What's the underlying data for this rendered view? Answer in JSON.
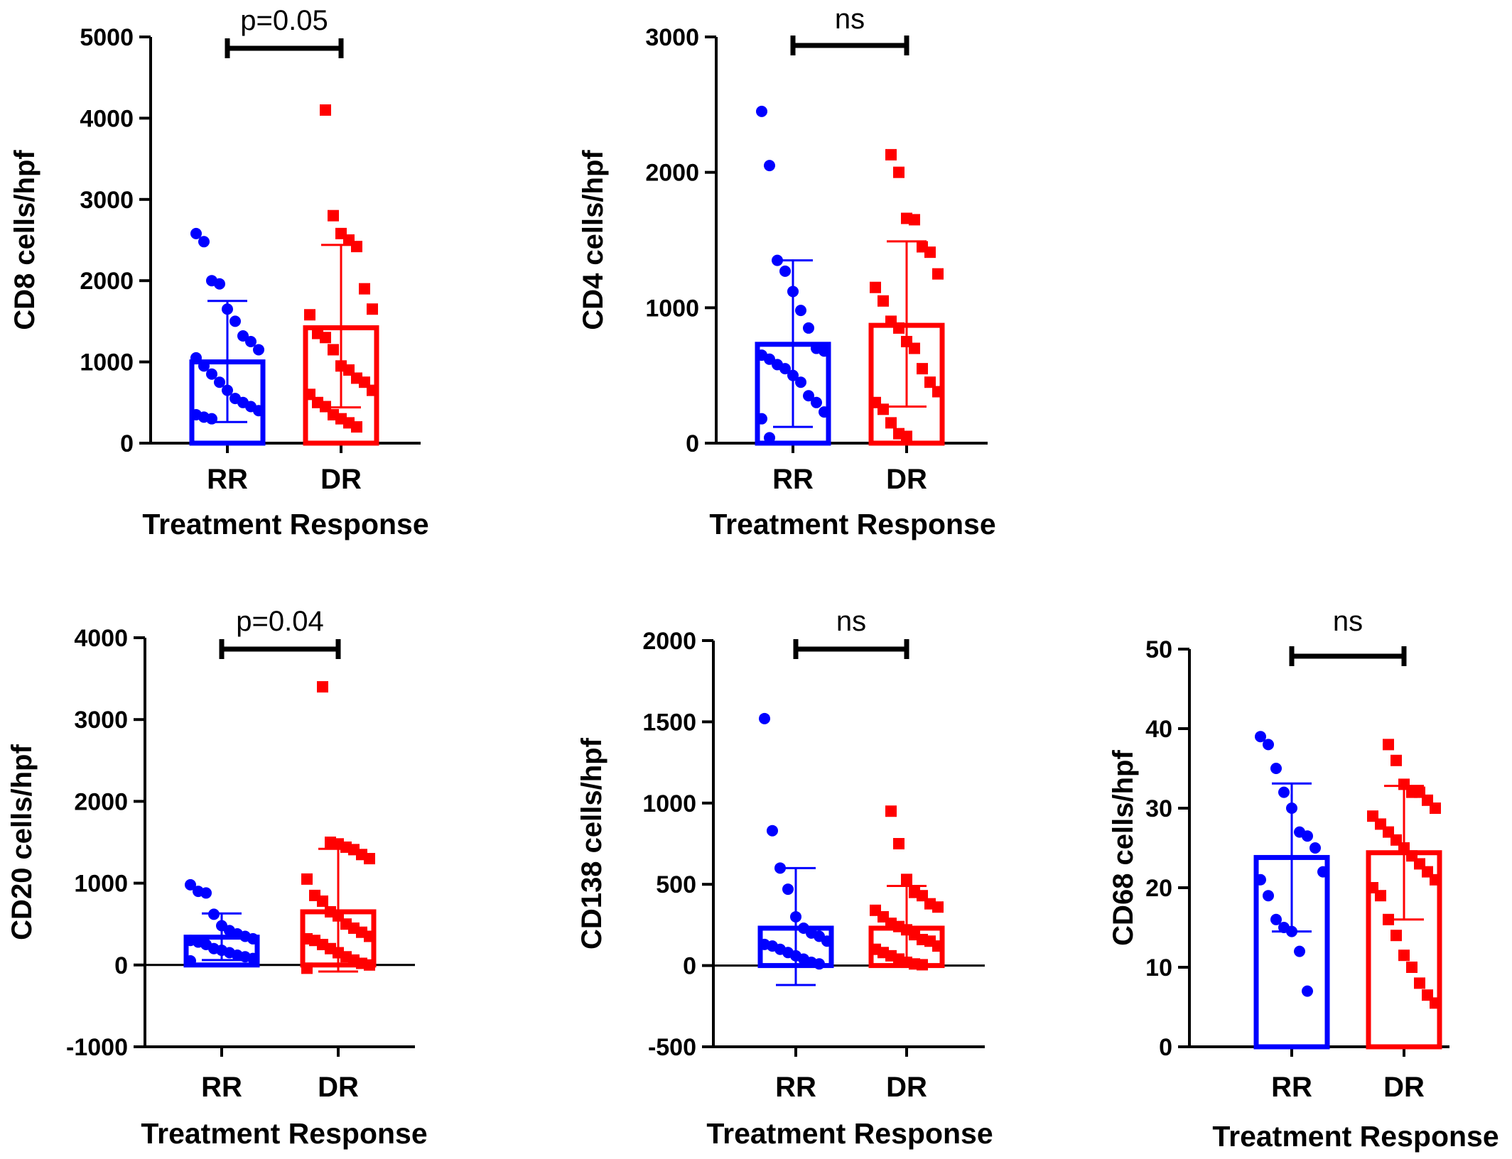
{
  "colors": {
    "RR": "#0000ff",
    "DR": "#ff0000",
    "axis": "#000000"
  },
  "chart_data": [
    {
      "type": "bar",
      "categories": [
        "RR",
        "DR"
      ],
      "ylabel": "CD8 cells/hpf",
      "xlabel": "Treatment Response",
      "ylim": [
        0,
        5000
      ],
      "yticks": [
        0,
        1000,
        2000,
        3000,
        4000,
        5000
      ],
      "tick_labels": [
        "0",
        "1000",
        "2000",
        "3000",
        "4000",
        "5000"
      ],
      "significance": "p=0.05",
      "zero_line": false,
      "series": [
        {
          "name": "RR",
          "mean": 1000,
          "sd_low": 260,
          "sd_high": 1750,
          "points": [
            2580,
            2480,
            2000,
            1960,
            1650,
            1500,
            1320,
            1250,
            1150,
            1050,
            950,
            850,
            750,
            650,
            550,
            500,
            450,
            400,
            350,
            320,
            300
          ]
        },
        {
          "name": "DR",
          "mean": 1420,
          "sd_low": 440,
          "sd_high": 2440,
          "points": [
            4100,
            2800,
            2580,
            2500,
            2420,
            1900,
            1650,
            1580,
            1350,
            1300,
            1150,
            950,
            900,
            800,
            750,
            650,
            600,
            500,
            450,
            350,
            300,
            250,
            200
          ]
        }
      ]
    },
    {
      "type": "bar",
      "categories": [
        "RR",
        "DR"
      ],
      "ylabel": "CD4 cells/hpf",
      "xlabel": "Treatment Response",
      "ylim": [
        0,
        3000
      ],
      "yticks": [
        0,
        1000,
        2000,
        3000
      ],
      "tick_labels": [
        "0",
        "1000",
        "2000",
        "3000"
      ],
      "significance": "ns",
      "zero_line": false,
      "series": [
        {
          "name": "RR",
          "mean": 730,
          "sd_low": 120,
          "sd_high": 1350,
          "points": [
            2450,
            2050,
            1350,
            1270,
            1120,
            980,
            850,
            700,
            680,
            650,
            620,
            580,
            550,
            500,
            450,
            350,
            300,
            230,
            180,
            40
          ]
        },
        {
          "name": "DR",
          "mean": 870,
          "sd_low": 270,
          "sd_high": 1490,
          "points": [
            2130,
            2000,
            1660,
            1650,
            1450,
            1410,
            1250,
            1150,
            1050,
            900,
            850,
            750,
            700,
            550,
            450,
            380,
            300,
            250,
            150,
            70,
            50
          ]
        }
      ]
    },
    {
      "type": "bar",
      "categories": [
        "RR",
        "DR"
      ],
      "ylabel": "CD20 cells/hpf",
      "xlabel": "Treatment Response",
      "ylim": [
        -1000,
        4000
      ],
      "yticks": [
        -1000,
        0,
        1000,
        2000,
        3000,
        4000
      ],
      "tick_labels": [
        "-1000",
        "0",
        "1000",
        "2000",
        "3000",
        "4000"
      ],
      "significance": "p=0.04",
      "zero_line": true,
      "series": [
        {
          "name": "RR",
          "mean": 340,
          "sd_low": 60,
          "sd_high": 630,
          "points": [
            980,
            900,
            880,
            620,
            480,
            420,
            380,
            350,
            320,
            300,
            280,
            250,
            200,
            180,
            150,
            120,
            100,
            80,
            50
          ]
        },
        {
          "name": "DR",
          "mean": 650,
          "sd_low": -80,
          "sd_high": 1420,
          "points": [
            3400,
            1500,
            1480,
            1440,
            1410,
            1350,
            1300,
            1050,
            850,
            780,
            650,
            600,
            500,
            450,
            400,
            350,
            320,
            300,
            250,
            200,
            150,
            100,
            60,
            20,
            0,
            -40
          ]
        }
      ]
    },
    {
      "type": "bar",
      "categories": [
        "RR",
        "DR"
      ],
      "ylabel": "CD138 cells/hpf",
      "xlabel": "Treatment Response",
      "ylim": [
        -500,
        2000
      ],
      "yticks": [
        -500,
        0,
        500,
        1000,
        1500,
        2000
      ],
      "tick_labels": [
        "-500",
        "0",
        "500",
        "1000",
        "1500",
        "2000"
      ],
      "significance": "ns",
      "zero_line": true,
      "series": [
        {
          "name": "RR",
          "mean": 230,
          "sd_low": -120,
          "sd_high": 600,
          "points": [
            1520,
            830,
            600,
            470,
            300,
            230,
            200,
            180,
            150,
            130,
            120,
            100,
            80,
            60,
            40,
            20,
            10
          ]
        },
        {
          "name": "DR",
          "mean": 230,
          "sd_low": 0,
          "sd_high": 490,
          "points": [
            950,
            750,
            530,
            450,
            430,
            380,
            360,
            340,
            300,
            260,
            240,
            220,
            190,
            160,
            150,
            120,
            100,
            80,
            60,
            40,
            20,
            10,
            5
          ]
        }
      ]
    },
    {
      "type": "bar",
      "categories": [
        "RR",
        "DR"
      ],
      "ylabel": "CD68 cells/hpf",
      "xlabel": "Treatment Response",
      "ylim": [
        0,
        50
      ],
      "yticks": [
        0,
        10,
        20,
        30,
        40,
        50
      ],
      "tick_labels": [
        "0",
        "10",
        "20",
        "30",
        "40",
        "50"
      ],
      "significance": "ns",
      "zero_line": false,
      "series": [
        {
          "name": "RR",
          "mean": 23.8,
          "sd_low": 14.5,
          "sd_high": 33.1,
          "points": [
            39,
            38,
            35,
            32,
            30,
            27,
            26.5,
            25,
            22,
            21,
            19,
            16,
            15,
            14.5,
            12,
            7
          ]
        },
        {
          "name": "DR",
          "mean": 24.4,
          "sd_low": 16,
          "sd_high": 32.8,
          "points": [
            38,
            36,
            33,
            32,
            32,
            31,
            30,
            29,
            28,
            27,
            26,
            25,
            24,
            23,
            22,
            21,
            20,
            19,
            16,
            14,
            11.5,
            10,
            8,
            6.5,
            5.5
          ]
        }
      ]
    }
  ]
}
